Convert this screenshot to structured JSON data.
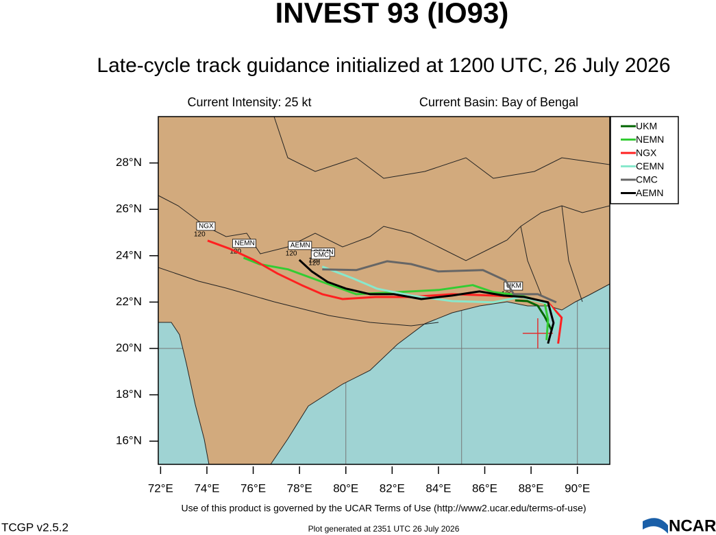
{
  "header": {
    "title": "INVEST 93 (IO93)",
    "subtitle": "Late-cycle track guidance initialized at 1200 UTC, 26 July 2026",
    "current_intensity": "Current Intensity: 25 kt",
    "current_basin": "Current Basin: Bay of Bengal"
  },
  "map": {
    "xlim": [
      71.9,
      91.4
    ],
    "ylim": [
      15,
      30
    ],
    "xticks": [
      {
        "value": 72,
        "label": "72°E"
      },
      {
        "value": 74,
        "label": "74°E"
      },
      {
        "value": 76,
        "label": "76°E"
      },
      {
        "value": 78,
        "label": "78°E"
      },
      {
        "value": 80,
        "label": "80°E"
      },
      {
        "value": 82,
        "label": "82°E"
      },
      {
        "value": 84,
        "label": "84°E"
      },
      {
        "value": 86,
        "label": "86°E"
      },
      {
        "value": 88,
        "label": "88°E"
      },
      {
        "value": 90,
        "label": "90°E"
      }
    ],
    "yticks": [
      {
        "value": 16,
        "label": "16°N"
      },
      {
        "value": 18,
        "label": "18°N"
      },
      {
        "value": 20,
        "label": "20°N"
      },
      {
        "value": 22,
        "label": "22°N"
      },
      {
        "value": 24,
        "label": "24°N"
      },
      {
        "value": 26,
        "label": "26°N"
      },
      {
        "value": 28,
        "label": "28°N"
      }
    ],
    "grid": {
      "lon": [
        80,
        85,
        90
      ],
      "lat": [
        20,
        25
      ]
    },
    "current_position": {
      "lon": 88.29,
      "lat": 20.65
    },
    "tracks": [
      {
        "name": "UKM",
        "color": "#006400",
        "end_label": "120",
        "lon": [
          88.88,
          88.58,
          88.29,
          87.84,
          87.31
        ],
        "lat": [
          20.8,
          21.39,
          21.84,
          22.04,
          22.07
        ]
      },
      {
        "name": "NEMN",
        "color": "#33cc33",
        "end_label": "120",
        "lon": [
          88.67,
          88.73,
          88.58,
          87.55,
          86.37,
          85.48,
          84.0,
          82.23,
          80.45,
          78.98,
          77.5,
          76.26,
          75.58
        ],
        "lat": [
          20.36,
          21.24,
          21.99,
          22.28,
          22.43,
          22.73,
          22.52,
          22.43,
          22.34,
          22.87,
          23.41,
          23.64,
          23.91
        ]
      },
      {
        "name": "NGX",
        "color": "#ff2020",
        "end_label": "120",
        "lon": [
          89.17,
          89.32,
          88.73,
          87.55,
          86.37,
          84.59,
          82.82,
          81.28,
          79.86,
          78.98,
          78.09,
          77.05,
          76.02,
          74.99,
          74.03
        ],
        "lat": [
          20.21,
          21.33,
          21.99,
          22.22,
          22.28,
          22.34,
          22.22,
          22.22,
          22.13,
          22.34,
          22.73,
          23.23,
          23.82,
          24.3,
          24.65
        ]
      },
      {
        "name": "CEMN",
        "color": "#88e8cc",
        "end_label": "120",
        "lon": [
          89.02,
          89.17,
          88.73,
          87.55,
          86.37,
          84.59,
          82.82,
          81.34,
          80.31,
          78.98
        ],
        "lat": [
          20.8,
          21.33,
          21.93,
          22.22,
          21.99,
          22.04,
          22.28,
          22.58,
          23.02,
          23.53
        ]
      },
      {
        "name": "CMC",
        "color": "#666666",
        "end_label": "120",
        "lon": [
          89.09,
          88.29,
          87.25,
          86.9,
          85.92,
          84.0,
          82.82,
          81.78,
          80.45,
          78.98
        ],
        "lat": [
          21.99,
          22.34,
          22.34,
          22.93,
          23.38,
          23.32,
          23.64,
          23.76,
          23.38,
          23.41
        ]
      },
      {
        "name": "AEMN",
        "color": "#000000",
        "end_label": "120",
        "lon": [
          88.73,
          88.97,
          88.73,
          87.7,
          86.81,
          85.77,
          84.59,
          83.26,
          82.08,
          81.05,
          80.01,
          79.21,
          78.53,
          77.99
        ],
        "lat": [
          20.21,
          21.1,
          21.99,
          22.22,
          22.28,
          22.46,
          22.28,
          22.13,
          22.34,
          22.34,
          22.58,
          22.87,
          23.32,
          23.82
        ]
      }
    ]
  },
  "footer": {
    "terms": "Use of this product is governed by the UCAR Terms of Use (http://www2.ucar.edu/terms-of-use)",
    "version": "TCGP v2.5.2",
    "generated": "Plot generated at 2351 UTC   26 July 2026",
    "logo": "NCAR"
  }
}
